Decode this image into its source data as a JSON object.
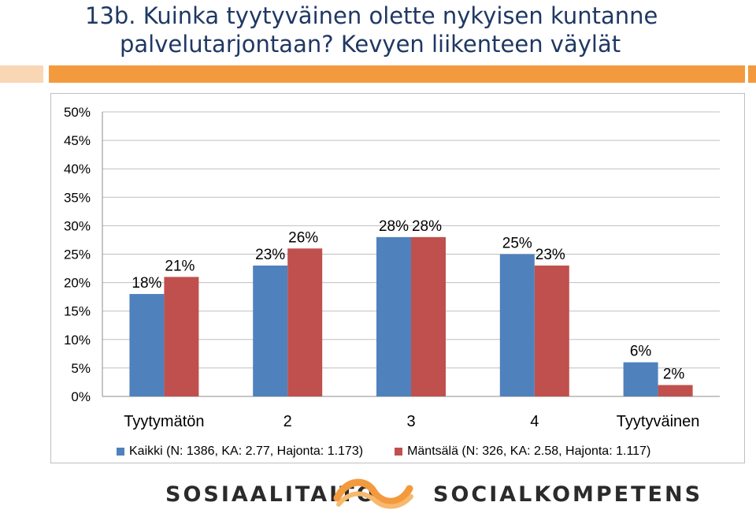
{
  "title_line1": "13b. Kuinka tyytyväinen olette nykyisen kuntanne",
  "title_line2": "palvelutarjontaan? Kevyen liikenteen väylät",
  "colors": {
    "accent_orange": "#f39a3e",
    "title_blue": "#1f3864",
    "series_blue": "#4f81bd",
    "series_red": "#c0504d"
  },
  "chart_data": {
    "type": "bar",
    "categories": [
      "Tyytymätön",
      "2",
      "3",
      "4",
      "Tyytyväinen"
    ],
    "series": [
      {
        "name": "Kaikki (N: 1386, KA: 2.77, Hajonta: 1.173)",
        "values": [
          18,
          23,
          28,
          25,
          6
        ],
        "labels": [
          "18%",
          "23%",
          "28%",
          "25%",
          "6%"
        ],
        "color": "#4f81bd"
      },
      {
        "name": "Mäntsälä (N: 326, KA: 2.58, Hajonta: 1.117)",
        "values": [
          21,
          26,
          28,
          23,
          2
        ],
        "labels": [
          "21%",
          "26%",
          "28%",
          "23%",
          "2%"
        ],
        "color": "#c0504d"
      }
    ],
    "yticks": [
      "0%",
      "5%",
      "10%",
      "15%",
      "20%",
      "25%",
      "30%",
      "35%",
      "40%",
      "45%",
      "50%"
    ],
    "ylim": [
      0,
      50
    ],
    "grid": true,
    "legend_position": "bottom"
  },
  "footer": {
    "left": "SOSIAALITAITO",
    "right": "SOCIALKOMPETENS"
  }
}
